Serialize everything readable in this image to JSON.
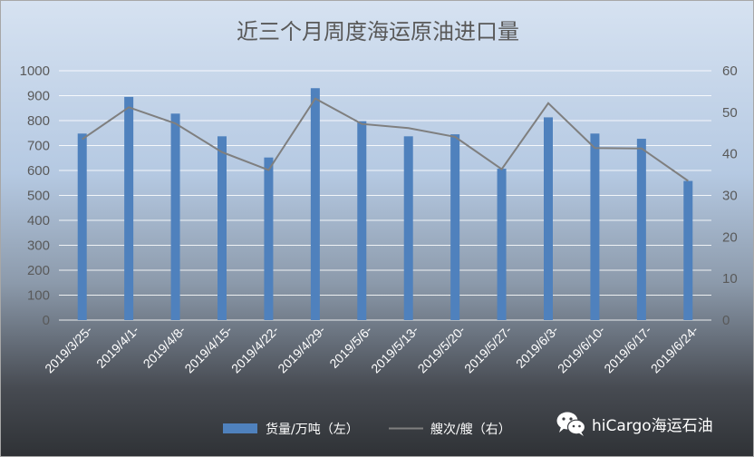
{
  "chart_data": {
    "type": "bar",
    "title": "近三个月周度海运原油进口量",
    "categories": [
      "2019/3/25-",
      "2019/4/1-",
      "2019/4/8-",
      "2019/4/15-",
      "2019/4/22-",
      "2019/4/29-",
      "2019/5/6-",
      "2019/5/13-",
      "2019/5/20-",
      "2019/5/27-",
      "2019/6/3-",
      "2019/6/10-",
      "2019/6/17-",
      "2019/6/24-"
    ],
    "series": [
      {
        "name": "货量/万吨（左）",
        "type": "bar",
        "axis": "left",
        "color": "#4f81bd",
        "values": [
          748,
          895,
          828,
          737,
          652,
          930,
          798,
          737,
          745,
          607,
          813,
          748,
          727,
          558
        ]
      },
      {
        "name": "艘次/艘（右）",
        "type": "line",
        "axis": "right",
        "color": "#7f7f7f",
        "values": [
          43.5,
          51.2,
          47.3,
          40.4,
          36.1,
          53.3,
          47.2,
          46.2,
          44.1,
          36.3,
          52.2,
          41.4,
          41.3,
          33.5
        ]
      }
    ],
    "ylim_left": [
      0,
      1000
    ],
    "yticks_left": [
      "0",
      "100",
      "200",
      "300",
      "400",
      "500",
      "600",
      "700",
      "800",
      "900",
      "1000"
    ],
    "ylim_right": [
      0,
      60
    ],
    "yticks_right": [
      "0",
      "10",
      "20",
      "30",
      "40",
      "50",
      "60"
    ],
    "grid": true,
    "legend_position": "bottom"
  },
  "watermark": {
    "text": "hiCargo海运石油",
    "icon": "wechat-icon"
  }
}
